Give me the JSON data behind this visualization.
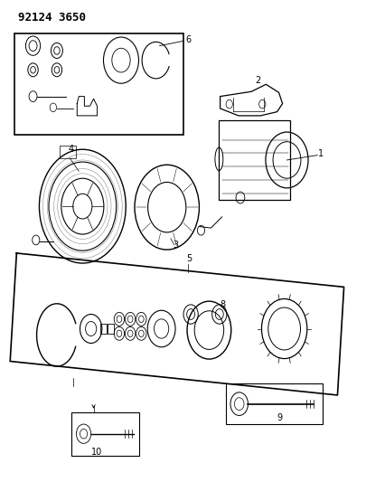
{
  "title": "92124 3650",
  "bg_color": "#ffffff",
  "line_color": "#000000"
}
